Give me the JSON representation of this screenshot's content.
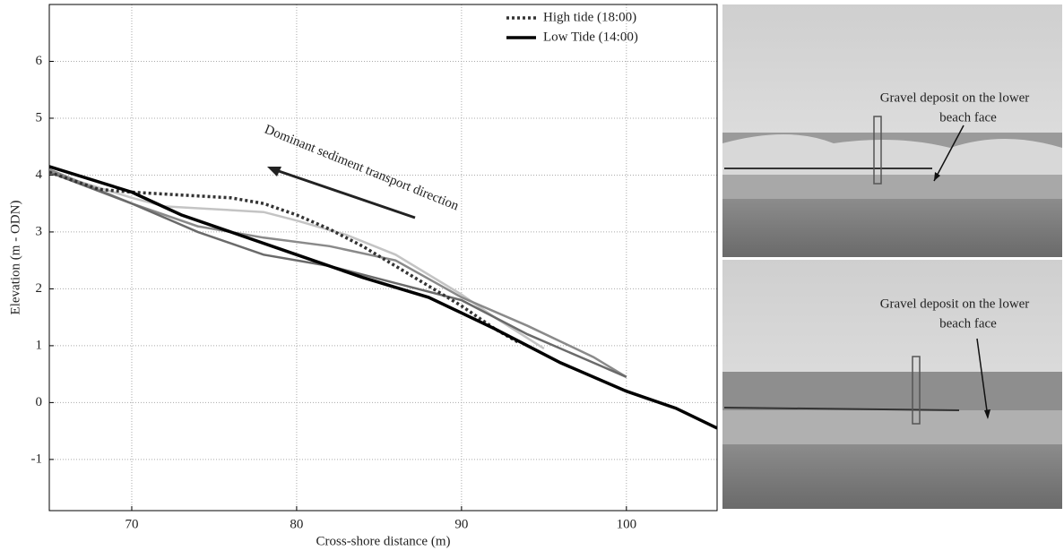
{
  "chart_data": {
    "type": "line",
    "xlabel": "Cross-shore distance (m)",
    "ylabel": "Elevation (m - ODN)",
    "xlim": [
      65,
      105.5
    ],
    "ylim": [
      -1.9,
      7
    ],
    "xticks": [
      70,
      80,
      90,
      100
    ],
    "yticks": [
      -1,
      0,
      1,
      2,
      3,
      4,
      5,
      6
    ],
    "grid": true,
    "legend": "upper right",
    "series": [
      {
        "color": "#c4c4c4",
        "dash": "solid",
        "x": [
          65,
          70,
          72,
          75,
          78,
          80,
          83,
          86,
          90,
          92,
          95
        ],
        "values": [
          4.05,
          3.6,
          3.45,
          3.4,
          3.35,
          3.2,
          2.95,
          2.6,
          1.9,
          1.5,
          0.95
        ]
      },
      {
        "color": "#8a8a8a",
        "dash": "solid",
        "x": [
          65,
          70,
          74,
          78,
          82,
          86,
          90,
          94,
          98,
          100
        ],
        "values": [
          4.1,
          3.5,
          3.1,
          2.9,
          2.75,
          2.5,
          1.85,
          1.35,
          0.8,
          0.45
        ]
      },
      {
        "color": "#6a6a6a",
        "dash": "solid",
        "x": [
          65,
          70,
          74,
          78,
          82,
          86,
          90,
          94,
          98,
          100
        ],
        "values": [
          4.05,
          3.5,
          3.0,
          2.6,
          2.4,
          2.1,
          1.8,
          1.2,
          0.7,
          0.45
        ]
      },
      {
        "name": "High tide (18:00)",
        "color": "#333333",
        "dash": "dotted",
        "x": [
          65,
          68,
          70,
          73,
          76,
          78,
          80,
          82,
          84,
          86,
          88,
          90,
          92,
          93.5
        ],
        "values": [
          4.05,
          3.75,
          3.7,
          3.65,
          3.6,
          3.5,
          3.3,
          3.05,
          2.75,
          2.4,
          2.05,
          1.7,
          1.3,
          1.05
        ]
      },
      {
        "name": "Low Tide (14:00)",
        "color": "#000000",
        "dash": "solid",
        "x": [
          65,
          70,
          73,
          76,
          80,
          84,
          88,
          92,
          94,
          96,
          100,
          103,
          105.5
        ],
        "values": [
          4.15,
          3.7,
          3.3,
          3.0,
          2.6,
          2.2,
          1.85,
          1.3,
          1.0,
          0.7,
          0.2,
          -0.1,
          -0.45
        ]
      }
    ],
    "annotation": "Dominant sediment transport direction",
    "photo_labels": [
      [
        "Gravel deposit on the lower",
        "beach face"
      ],
      [
        "Gravel deposit on the lower",
        "beach face"
      ]
    ]
  }
}
